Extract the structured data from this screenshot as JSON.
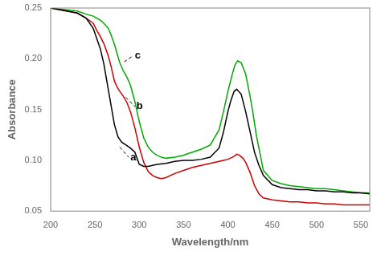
{
  "chart_data": {
    "type": "line",
    "x_label": "Wavelength/nm",
    "y_label": "Absorbance",
    "xlim": [
      200,
      560
    ],
    "ylim": [
      0.05,
      0.25
    ],
    "xticks": [
      200,
      250,
      300,
      350,
      400,
      450,
      500,
      550
    ],
    "yticks": [
      0.05,
      {
        "value": 0.1,
        "label": "0.10"
      },
      0.15,
      {
        "value": 0.2,
        "label": "0.20"
      },
      0.25
    ],
    "grid": false,
    "annotations": [
      {
        "text": "a",
        "xy": [
          278,
          0.113
        ],
        "xytext": [
          289,
          0.103
        ]
      },
      {
        "text": "b",
        "xy": [
          285,
          0.162
        ],
        "xytext": [
          296,
          0.153
        ]
      },
      {
        "text": "c",
        "xy": [
          283,
          0.197
        ],
        "xytext": [
          294,
          0.203
        ]
      }
    ],
    "series": [
      {
        "color": "#000000",
        "x": [
          200,
          230,
          240,
          248,
          252,
          256,
          260,
          265,
          268,
          272,
          276,
          280,
          285,
          290,
          295,
          300,
          305,
          310,
          320,
          330,
          340,
          350,
          360,
          370,
          380,
          390,
          395,
          400,
          403,
          407,
          410,
          415,
          420,
          425,
          430,
          435,
          440,
          450,
          460,
          470,
          480,
          490,
          500,
          510,
          520,
          530,
          540,
          550,
          560
        ],
        "values": [
          0.25,
          0.245,
          0.24,
          0.23,
          0.22,
          0.21,
          0.195,
          0.17,
          0.155,
          0.135,
          0.123,
          0.118,
          0.115,
          0.112,
          0.108,
          0.096,
          0.094,
          0.094,
          0.096,
          0.097,
          0.099,
          0.1,
          0.1,
          0.101,
          0.103,
          0.112,
          0.128,
          0.148,
          0.158,
          0.168,
          0.17,
          0.165,
          0.148,
          0.128,
          0.108,
          0.095,
          0.085,
          0.076,
          0.073,
          0.072,
          0.071,
          0.071,
          0.07,
          0.07,
          0.069,
          0.069,
          0.068,
          0.068,
          0.067
        ]
      },
      {
        "color": "#cc0000",
        "x": [
          200,
          230,
          240,
          248,
          252,
          256,
          260,
          265,
          268,
          272,
          275,
          278,
          282,
          286,
          290,
          295,
          300,
          305,
          310,
          315,
          320,
          325,
          330,
          340,
          350,
          360,
          370,
          380,
          390,
          395,
          400,
          405,
          407,
          410,
          413,
          417,
          420,
          425,
          430,
          435,
          440,
          450,
          460,
          470,
          480,
          490,
          500,
          510,
          520,
          530,
          540,
          550,
          560
        ],
        "values": [
          0.25,
          0.245,
          0.24,
          0.235,
          0.228,
          0.222,
          0.215,
          0.203,
          0.193,
          0.178,
          0.172,
          0.168,
          0.163,
          0.157,
          0.148,
          0.132,
          0.113,
          0.098,
          0.089,
          0.085,
          0.083,
          0.082,
          0.083,
          0.087,
          0.09,
          0.093,
          0.095,
          0.097,
          0.099,
          0.1,
          0.101,
          0.103,
          0.104,
          0.106,
          0.105,
          0.102,
          0.098,
          0.088,
          0.075,
          0.067,
          0.063,
          0.061,
          0.06,
          0.059,
          0.059,
          0.058,
          0.058,
          0.057,
          0.057,
          0.056,
          0.056,
          0.056,
          0.056
        ]
      },
      {
        "color": "#00aa00",
        "x": [
          200,
          230,
          240,
          248,
          252,
          256,
          260,
          265,
          268,
          272,
          275,
          278,
          282,
          286,
          290,
          295,
          300,
          305,
          310,
          315,
          320,
          325,
          330,
          340,
          350,
          360,
          370,
          380,
          390,
          395,
          400,
          405,
          408,
          411,
          415,
          420,
          425,
          428,
          432,
          440,
          450,
          460,
          470,
          480,
          490,
          500,
          510,
          520,
          530,
          540,
          550,
          560
        ],
        "values": [
          0.25,
          0.247,
          0.244,
          0.242,
          0.24,
          0.238,
          0.235,
          0.23,
          0.224,
          0.214,
          0.205,
          0.196,
          0.188,
          0.182,
          0.174,
          0.158,
          0.138,
          0.122,
          0.113,
          0.108,
          0.105,
          0.103,
          0.102,
          0.103,
          0.105,
          0.108,
          0.111,
          0.115,
          0.13,
          0.148,
          0.168,
          0.185,
          0.194,
          0.198,
          0.196,
          0.185,
          0.163,
          0.148,
          0.125,
          0.09,
          0.08,
          0.077,
          0.075,
          0.074,
          0.073,
          0.072,
          0.072,
          0.071,
          0.07,
          0.069,
          0.068,
          0.068
        ]
      }
    ]
  }
}
